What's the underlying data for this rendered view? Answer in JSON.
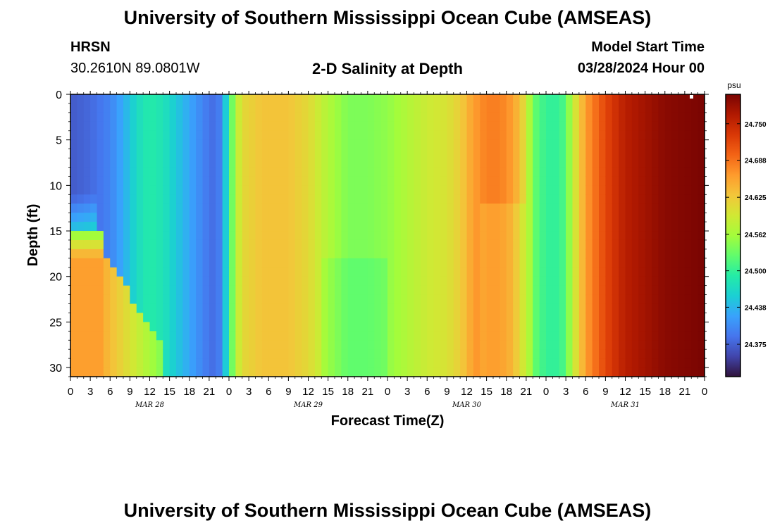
{
  "header": {
    "title": "University of Southern Mississippi Ocean Cube (AMSEAS)",
    "station": "HRSN",
    "coords": "30.2610N  89.0801W",
    "subtitle": "2-D Salinity at Depth",
    "start_label": "Model Start Time",
    "start_value": "03/28/2024 Hour 00"
  },
  "footer": {
    "title": "University of Southern Mississippi Ocean Cube (AMSEAS)"
  },
  "chart_data": {
    "type": "heatmap",
    "title": "2-D Salinity at Depth",
    "xlabel": "Forecast Time(Z)",
    "ylabel": "Depth (ft)",
    "xlim": [
      0,
      96
    ],
    "ylim": [
      0,
      31
    ],
    "x_tick_values": [
      0,
      3,
      6,
      9,
      12,
      15,
      18,
      21,
      24,
      27,
      30,
      33,
      36,
      39,
      42,
      45,
      48,
      51,
      54,
      57,
      60,
      63,
      66,
      69,
      72,
      75,
      78,
      81,
      84,
      87,
      90,
      93,
      96
    ],
    "x_tick_labels": [
      "0",
      "3",
      "6",
      "9",
      "12",
      "15",
      "18",
      "21",
      "0",
      "3",
      "6",
      "9",
      "12",
      "15",
      "18",
      "21",
      "0",
      "3",
      "6",
      "9",
      "12",
      "15",
      "18",
      "21",
      "0",
      "3",
      "6",
      "9",
      "12",
      "15",
      "18",
      "21",
      "0"
    ],
    "day_labels": [
      {
        "label": "MAR 28",
        "hour": 12
      },
      {
        "label": "MAR 29",
        "hour": 36
      },
      {
        "label": "MAR 30",
        "hour": 60
      },
      {
        "label": "MAR 31",
        "hour": 84
      }
    ],
    "y_tick_values": [
      0,
      5,
      10,
      15,
      20,
      25,
      30
    ],
    "y_tick_labels": [
      "0",
      "5",
      "10",
      "15",
      "20",
      "25",
      "30"
    ],
    "colorbar": {
      "unit": "psu",
      "min": 24.32,
      "max": 24.8,
      "tick_values": [
        24.375,
        24.438,
        24.5,
        24.562,
        24.625,
        24.688,
        24.75
      ],
      "tick_labels": [
        "24.375",
        "24.438",
        "24.500",
        "24.562",
        "24.625",
        "24.688",
        "24.750"
      ],
      "colors": [
        "#30123b",
        "#4145ab",
        "#4675ed",
        "#39a2fc",
        "#1bcfd4",
        "#24eca6",
        "#61fc6c",
        "#a4fc3b",
        "#d1e834",
        "#f3c63a",
        "#fe9b2d",
        "#f36315",
        "#d93806",
        "#b11901",
        "#7a0402"
      ]
    },
    "surface_profile": [
      [
        0,
        24.37
      ],
      [
        3,
        24.38
      ],
      [
        6,
        24.4
      ],
      [
        8,
        24.43
      ],
      [
        10,
        24.47
      ],
      [
        12,
        24.49
      ],
      [
        14,
        24.48
      ],
      [
        17,
        24.44
      ],
      [
        20,
        24.4
      ],
      [
        22,
        24.38
      ],
      [
        23,
        24.41
      ],
      [
        24,
        24.5
      ],
      [
        25,
        24.57
      ],
      [
        26,
        24.61
      ],
      [
        29,
        24.63
      ],
      [
        33,
        24.63
      ],
      [
        36,
        24.61
      ],
      [
        39,
        24.57
      ],
      [
        42,
        24.54
      ],
      [
        45,
        24.54
      ],
      [
        48,
        24.55
      ],
      [
        51,
        24.57
      ],
      [
        54,
        24.59
      ],
      [
        57,
        24.6
      ],
      [
        59,
        24.62
      ],
      [
        61,
        24.66
      ],
      [
        63,
        24.68
      ],
      [
        65,
        24.68
      ],
      [
        67,
        24.66
      ],
      [
        69,
        24.6
      ],
      [
        70,
        24.53
      ],
      [
        72,
        24.5
      ],
      [
        74,
        24.5
      ],
      [
        75,
        24.52
      ],
      [
        76,
        24.58
      ],
      [
        78,
        24.66
      ],
      [
        81,
        24.72
      ],
      [
        84,
        24.76
      ],
      [
        90,
        24.79
      ],
      [
        96,
        24.8
      ]
    ],
    "notes": "Salinity (psu) vs forecast hour (x) and depth (y). Surface profile lists approximate salinity at 0 ft; columns are mostly depth-uniform except a saline tongue below ~16 ft during hours 0-13 on MAR 28."
  }
}
